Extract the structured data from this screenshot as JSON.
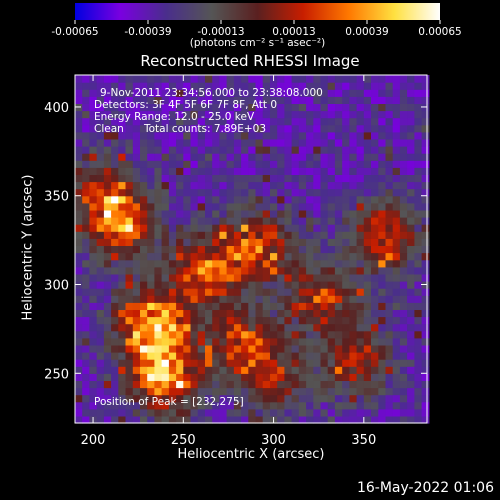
{
  "chart_data": {
    "type": "heatmap",
    "title": "Reconstructed RHESSI Image",
    "xlabel": "Heliocentric X (arcsec)",
    "ylabel": "Heliocentric Y (arcsec)",
    "xlim": [
      190,
      385
    ],
    "ylim": [
      222,
      418
    ],
    "x_ticks": [
      200,
      250,
      300,
      350
    ],
    "y_ticks": [
      250,
      300,
      350,
      400
    ],
    "colorbar": {
      "ticks": [
        "-0.00065",
        "-0.00039",
        "-0.00013",
        "0.00013",
        "0.00039",
        "0.00065"
      ],
      "range": [
        -0.00065,
        0.00065
      ],
      "unit_label": "(photons cm⁻² s⁻¹ asec⁻²)",
      "colormap": [
        "#0000e0",
        "#7a00e0",
        "#4a2e8c",
        "#555555",
        "#5a2020",
        "#c81e00",
        "#ff7800",
        "#ffe040",
        "#ffffff"
      ]
    },
    "peak": [
      232,
      275
    ],
    "bright_regions": [
      {
        "x": 230,
        "y": 275,
        "level": 1.0
      },
      {
        "x": 215,
        "y": 330,
        "level": 0.7
      },
      {
        "x": 238,
        "y": 245,
        "level": 0.85
      },
      {
        "x": 260,
        "y": 305,
        "level": 0.75
      },
      {
        "x": 290,
        "y": 320,
        "level": 0.7
      },
      {
        "x": 280,
        "y": 265,
        "level": 0.65
      },
      {
        "x": 325,
        "y": 290,
        "level": 0.6
      },
      {
        "x": 360,
        "y": 325,
        "level": 0.7
      },
      {
        "x": 345,
        "y": 255,
        "level": 0.55
      },
      {
        "x": 205,
        "y": 350,
        "level": 0.6
      },
      {
        "x": 300,
        "y": 245,
        "level": 0.5
      }
    ],
    "annotations": {
      "time_range": "9-Nov-2011 23:34:56.000 to 23:38:08.000",
      "detectors": "Detectors: 3F 4F 5F 6F 7F 8F, Att 0",
      "energy_range": "Energy Range: 12.0 - 25.0 keV",
      "method": "Clean",
      "total_counts": "Total counts: 7.89E+03",
      "peak_position": "Position of Peak = [232,275]"
    }
  },
  "footer": {
    "date": "16-May-2022 01:06"
  }
}
